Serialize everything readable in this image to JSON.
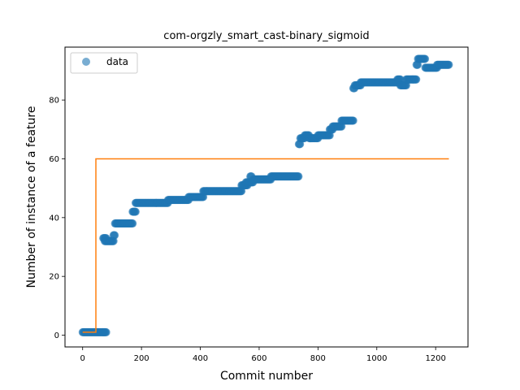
{
  "chart_data": {
    "type": "scatter",
    "title": "com-orgzly_smart_cast-binary_sigmoid",
    "xlabel": "Commit number",
    "ylabel": "Number of instance of a feature",
    "xlim": [
      -60,
      1310
    ],
    "ylim": [
      -4,
      98
    ],
    "xticks": [
      0,
      200,
      400,
      600,
      800,
      1000,
      1200
    ],
    "yticks": [
      0,
      20,
      40,
      60,
      80
    ],
    "grid": false,
    "legend": {
      "placement": "top-left",
      "entries": [
        "data"
      ]
    },
    "colors": {
      "data": "#1f77b4",
      "fit": "#ff7f0e"
    },
    "series": [
      {
        "name": "data",
        "kind": "scatter",
        "segments": [
          {
            "x0": 0,
            "x1": 80,
            "y": 1
          },
          {
            "x0": 70,
            "x1": 80,
            "y": 33
          },
          {
            "x0": 75,
            "x1": 105,
            "y": 32
          },
          {
            "x0": 105,
            "x1": 110,
            "y": 34
          },
          {
            "x0": 110,
            "x1": 170,
            "y": 38
          },
          {
            "x0": 170,
            "x1": 180,
            "y": 42
          },
          {
            "x0": 180,
            "x1": 250,
            "y": 45
          },
          {
            "x0": 250,
            "x1": 290,
            "y": 45
          },
          {
            "x0": 290,
            "x1": 360,
            "y": 46
          },
          {
            "x0": 360,
            "x1": 410,
            "y": 47
          },
          {
            "x0": 410,
            "x1": 540,
            "y": 49
          },
          {
            "x0": 540,
            "x1": 560,
            "y": 51
          },
          {
            "x0": 555,
            "x1": 580,
            "y": 52
          },
          {
            "x0": 570,
            "x1": 575,
            "y": 54
          },
          {
            "x0": 580,
            "x1": 640,
            "y": 53
          },
          {
            "x0": 640,
            "x1": 735,
            "y": 54
          },
          {
            "x0": 735,
            "x1": 740,
            "y": 65
          },
          {
            "x0": 740,
            "x1": 755,
            "y": 67
          },
          {
            "x0": 755,
            "x1": 770,
            "y": 68
          },
          {
            "x0": 770,
            "x1": 800,
            "y": 67
          },
          {
            "x0": 800,
            "x1": 840,
            "y": 68
          },
          {
            "x0": 840,
            "x1": 850,
            "y": 70
          },
          {
            "x0": 850,
            "x1": 880,
            "y": 71
          },
          {
            "x0": 880,
            "x1": 920,
            "y": 73
          },
          {
            "x0": 920,
            "x1": 925,
            "y": 84
          },
          {
            "x0": 925,
            "x1": 945,
            "y": 85
          },
          {
            "x0": 945,
            "x1": 1075,
            "y": 86
          },
          {
            "x0": 1070,
            "x1": 1080,
            "y": 87
          },
          {
            "x0": 1080,
            "x1": 1100,
            "y": 85
          },
          {
            "x0": 1100,
            "x1": 1135,
            "y": 87
          },
          {
            "x0": 1135,
            "x1": 1140,
            "y": 92
          },
          {
            "x0": 1140,
            "x1": 1165,
            "y": 94
          },
          {
            "x0": 1165,
            "x1": 1205,
            "y": 91
          },
          {
            "x0": 1205,
            "x1": 1245,
            "y": 92
          }
        ]
      },
      {
        "name": "",
        "kind": "step-line",
        "points": [
          [
            0,
            1
          ],
          [
            45,
            1
          ],
          [
            45,
            60
          ],
          [
            1245,
            60
          ]
        ]
      }
    ]
  }
}
